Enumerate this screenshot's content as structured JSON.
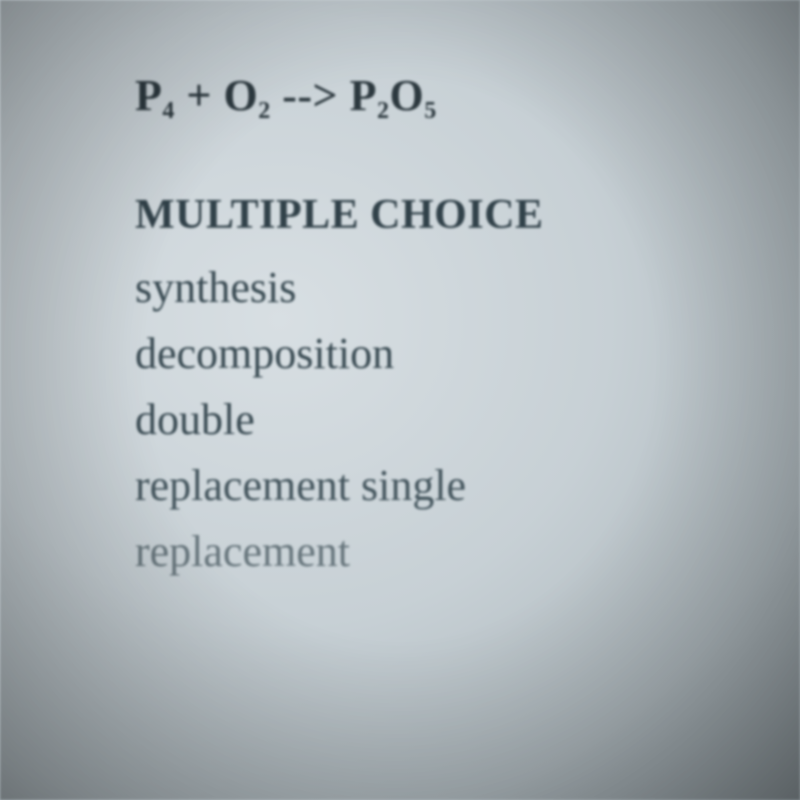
{
  "equation": {
    "lhs1_base": "P",
    "lhs1_sub": "4",
    "plus": "+ ",
    "lhs2_base": "O",
    "lhs2_sub": "2",
    "arrow": " --> ",
    "rhs_base1": "P",
    "rhs_sub1": "2",
    "rhs_base2": "O",
    "rhs_sub2": "5"
  },
  "mc_header": "MULTIPLE CHOICE",
  "options": {
    "o1": "synthesis",
    "o2": "decomposition",
    "o3": "double",
    "o4": "replacement single",
    "o5": "replacement"
  },
  "top_crop": ""
}
